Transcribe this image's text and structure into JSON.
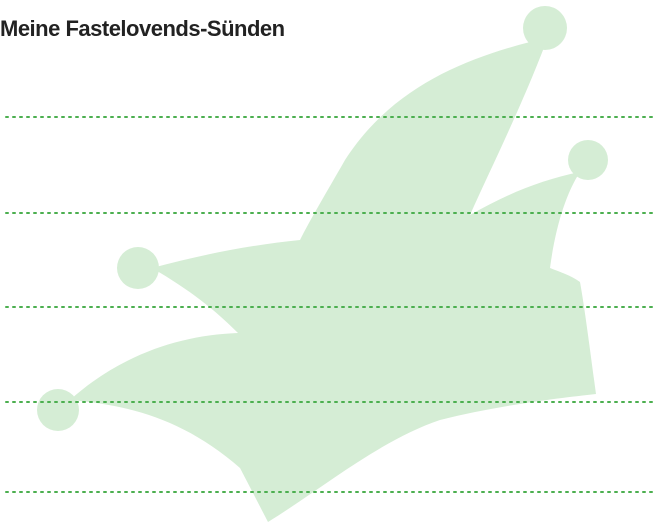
{
  "header": {
    "title": "Meine Fastelovends-Sünden"
  }
}
